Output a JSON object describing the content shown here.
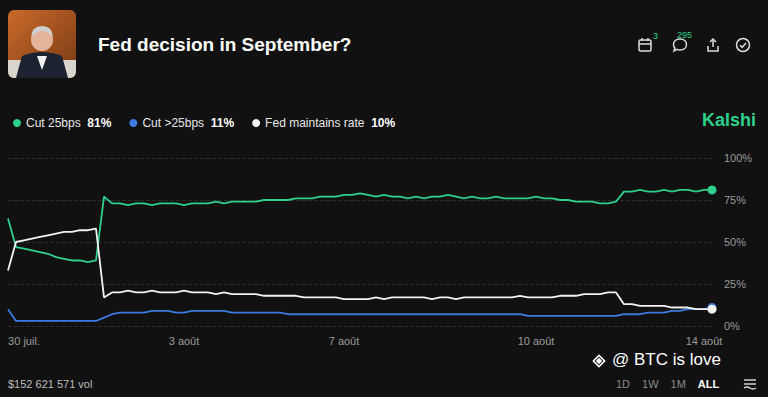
{
  "header": {
    "calendar_count": "3",
    "comment_count": "295",
    "brand": "Kalshi"
  },
  "chart_data": {
    "type": "line",
    "title": "Fed decision in September?",
    "categories": [
      null,
      null,
      "30 juil.",
      null,
      null,
      null,
      null,
      null,
      null,
      null,
      null,
      null,
      null,
      null,
      null,
      null,
      null,
      null,
      null,
      null,
      null,
      null,
      "3 août",
      null,
      null,
      null,
      null,
      null,
      null,
      null,
      null,
      null,
      null,
      null,
      null,
      null,
      null,
      null,
      null,
      null,
      null,
      null,
      "7 août",
      null,
      null,
      null,
      null,
      null,
      null,
      null,
      null,
      null,
      null,
      null,
      null,
      null,
      null,
      null,
      null,
      null,
      null,
      null,
      null,
      null,
      null,
      null,
      "10 août",
      null,
      null,
      null,
      null,
      null,
      null,
      null,
      null,
      null,
      null,
      null,
      null,
      null,
      null,
      null,
      null,
      null,
      null,
      null,
      null,
      "14 août",
      null
    ],
    "series": [
      {
        "name": "Cut 25bps",
        "color": "#2ed18c",
        "last_label": "81%",
        "values": [
          64,
          47,
          46,
          45,
          44,
          43,
          41,
          40,
          39,
          39,
          38,
          39,
          77,
          73,
          73,
          72,
          73,
          73,
          72,
          73,
          73,
          73,
          72,
          73,
          73,
          73,
          74,
          73,
          74,
          74,
          74,
          74,
          75,
          75,
          75,
          75,
          76,
          76,
          76,
          77,
          77,
          77,
          78,
          78,
          79,
          78,
          77,
          78,
          77,
          77,
          76,
          77,
          76,
          77,
          77,
          78,
          77,
          76,
          77,
          76,
          76,
          77,
          76,
          76,
          76,
          76,
          77,
          76,
          76,
          75,
          75,
          74,
          74,
          74,
          73,
          73,
          74,
          80,
          80,
          81,
          80,
          80,
          81,
          80,
          81,
          81,
          80,
          81,
          81
        ]
      },
      {
        "name": "Cut >25bps",
        "color": "#3d7be0",
        "last_label": "11%",
        "values": [
          10,
          3,
          3,
          3,
          3,
          3,
          3,
          3,
          3,
          3,
          3,
          3,
          5,
          7,
          8,
          8,
          8,
          8,
          9,
          9,
          9,
          8,
          8,
          9,
          9,
          9,
          9,
          9,
          8,
          8,
          8,
          8,
          8,
          8,
          8,
          7,
          7,
          7,
          7,
          7,
          7,
          7,
          7,
          7,
          7,
          7,
          7,
          7,
          7,
          7,
          7,
          7,
          7,
          7,
          7,
          7,
          7,
          7,
          7,
          7,
          7,
          7,
          7,
          7,
          7,
          6,
          6,
          6,
          6,
          6,
          6,
          6,
          6,
          6,
          6,
          6,
          6,
          7,
          7,
          7,
          8,
          8,
          8,
          9,
          9,
          10,
          10,
          10,
          11
        ]
      },
      {
        "name": "Fed maintains rate",
        "color": "#f2f2f2",
        "last_label": "10%",
        "values": [
          33,
          50,
          51,
          52,
          53,
          54,
          55,
          56,
          56,
          57,
          57,
          58,
          17,
          20,
          20,
          21,
          20,
          20,
          21,
          20,
          20,
          20,
          21,
          20,
          20,
          20,
          19,
          20,
          19,
          19,
          19,
          19,
          18,
          18,
          18,
          18,
          18,
          17,
          17,
          17,
          17,
          17,
          16,
          16,
          16,
          16,
          17,
          16,
          17,
          17,
          17,
          17,
          17,
          16,
          17,
          17,
          16,
          17,
          17,
          17,
          17,
          17,
          17,
          17,
          18,
          17,
          17,
          17,
          17,
          18,
          18,
          18,
          19,
          19,
          19,
          20,
          20,
          13,
          13,
          12,
          12,
          12,
          12,
          11,
          11,
          11,
          10,
          10,
          10
        ]
      }
    ],
    "ylim": [
      0,
      100
    ],
    "yticks": [
      {
        "value": 0,
        "label": "0%"
      },
      {
        "value": 25,
        "label": "25%"
      },
      {
        "value": 50,
        "label": "50%"
      },
      {
        "value": 75,
        "label": "75%"
      },
      {
        "value": 100,
        "label": "100%"
      }
    ],
    "grid": true,
    "legend": "top-left"
  },
  "footer": {
    "volume": "$152 621 571 vol",
    "ranges": [
      "1D",
      "1W",
      "1M",
      "ALL"
    ],
    "active_range": "ALL"
  },
  "watermark": "@ BTC is love"
}
